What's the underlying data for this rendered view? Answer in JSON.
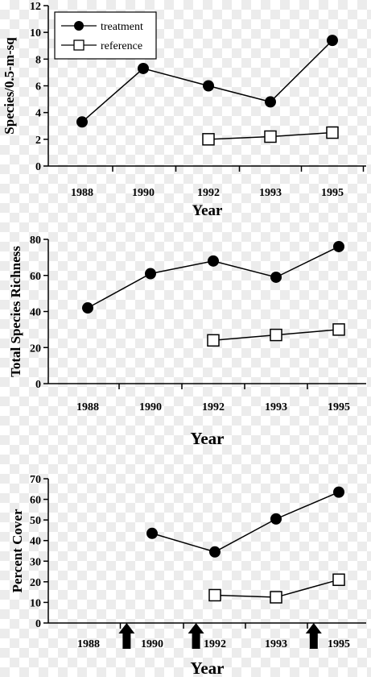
{
  "chart_data": [
    {
      "type": "line",
      "title": "",
      "xlabel": "Year",
      "ylabel": "Species/0.5-m-sq",
      "categories": [
        "1988",
        "1990",
        "1992",
        "1993",
        "1995"
      ],
      "ylim": [
        0,
        12
      ],
      "yticks": [
        0,
        2,
        4,
        6,
        8,
        10,
        12
      ],
      "legend": "top-left",
      "grid": false,
      "series": [
        {
          "name": "treatment",
          "marker": "filled-circle",
          "values": [
            3.3,
            7.3,
            6.0,
            4.8,
            9.4
          ]
        },
        {
          "name": "reference",
          "marker": "open-square",
          "values": [
            null,
            null,
            2.0,
            2.2,
            2.5
          ]
        }
      ]
    },
    {
      "type": "line",
      "title": "",
      "xlabel": "Year",
      "ylabel": "Total Species Richness",
      "categories": [
        "1988",
        "1990",
        "1992",
        "1993",
        "1995"
      ],
      "ylim": [
        0,
        80
      ],
      "yticks": [
        0,
        20,
        40,
        60,
        80
      ],
      "grid": false,
      "series": [
        {
          "marker": "filled-circle",
          "values": [
            42,
            61,
            68,
            59,
            76
          ]
        },
        {
          "marker": "open-square",
          "values": [
            null,
            null,
            24,
            27,
            30
          ]
        }
      ]
    },
    {
      "type": "line",
      "title": "",
      "xlabel": "Year",
      "ylabel": "Percent Cover",
      "categories": [
        "1988",
        "1990",
        "1992",
        "1993",
        "1995"
      ],
      "ylim": [
        0,
        70
      ],
      "yticks": [
        0,
        10,
        20,
        30,
        40,
        50,
        60,
        70
      ],
      "grid": false,
      "arrows_at_x": [
        0.6,
        1.7,
        3.6
      ],
      "series": [
        {
          "marker": "filled-circle",
          "values": [
            null,
            43.5,
            34.5,
            50.5,
            63.5
          ]
        },
        {
          "marker": "open-square",
          "values": [
            null,
            null,
            13.5,
            12.5,
            21
          ]
        }
      ]
    }
  ]
}
